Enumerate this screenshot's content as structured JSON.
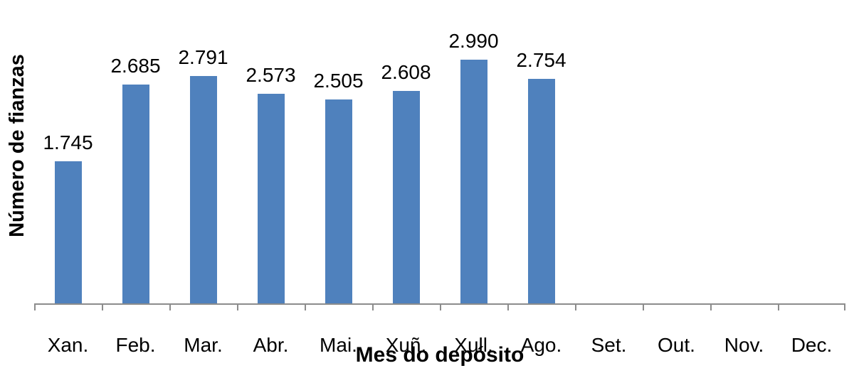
{
  "chart_data": {
    "type": "bar",
    "title": "",
    "xlabel": "Mes do depósito",
    "ylabel": "Número de fianzas",
    "categories": [
      "Xan.",
      "Feb.",
      "Mar.",
      "Abr.",
      "Mai.",
      "Xuñ.",
      "Xull.",
      "Ago.",
      "Set.",
      "Out.",
      "Nov.",
      "Dec."
    ],
    "values": [
      1745,
      2685,
      2791,
      2573,
      2505,
      2608,
      2990,
      2754,
      null,
      null,
      null,
      null
    ],
    "data_labels": [
      "1.745",
      "2.685",
      "2.791",
      "2.573",
      "2.505",
      "2.608",
      "2.990",
      "2.754",
      "",
      "",
      "",
      ""
    ],
    "ylim": [
      0,
      3480
    ],
    "grid": false,
    "legend": "none",
    "bar_color": "#4F81BD",
    "axis_color": "#8C8C8C"
  }
}
